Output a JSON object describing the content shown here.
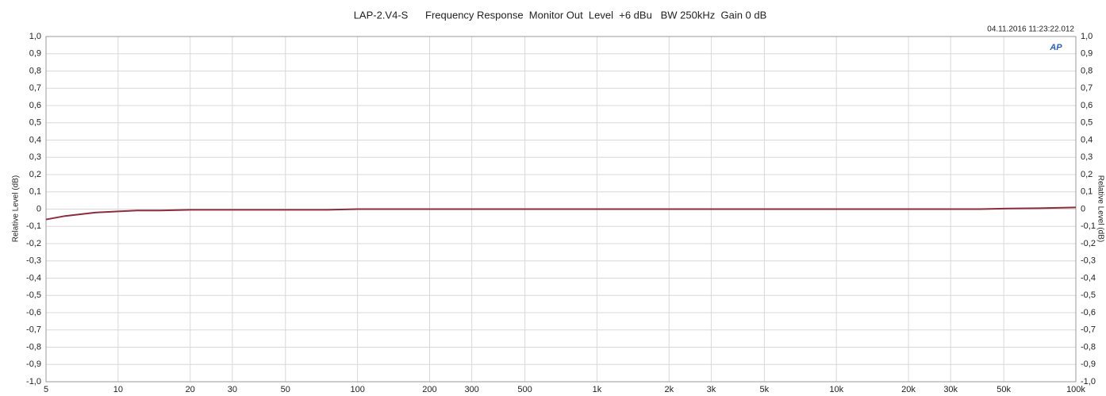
{
  "chart_data": {
    "type": "line",
    "title": "LAP-2.V4-S      Frequency Response  Monitor Out  Level  +6 dBu   BW 250kHz  Gain 0 dB",
    "timestamp": "04.11.2016 11:23:22.012",
    "logo": "AP",
    "ylabel": "Relative Level (dB)",
    "xscale": "log",
    "grid": true,
    "color": "#8b2d3c",
    "x": [
      5,
      6,
      8,
      10,
      12,
      15,
      20,
      30,
      50,
      75,
      100,
      1000,
      10000,
      40000,
      50000,
      70000,
      100000
    ],
    "values": [
      -0.06,
      -0.04,
      -0.02,
      -0.013,
      -0.008,
      -0.008,
      -0.004,
      -0.004,
      -0.004,
      -0.004,
      0,
      0,
      0,
      0,
      0.003,
      0.005,
      0.01
    ],
    "xlim": [
      5,
      100000
    ],
    "xticks": [
      5,
      10,
      20,
      30,
      50,
      100,
      200,
      300,
      500,
      {
        "value": 1000,
        "label": "1k"
      },
      {
        "value": 2000,
        "label": "2k"
      },
      {
        "value": 3000,
        "label": "3k"
      },
      {
        "value": 5000,
        "label": "5k"
      },
      {
        "value": 10000,
        "label": "10k"
      },
      {
        "value": 20000,
        "label": "20k"
      },
      {
        "value": 30000,
        "label": "30k"
      },
      {
        "value": 50000,
        "label": "50k"
      },
      {
        "value": 100000,
        "label": "100k"
      }
    ],
    "ylim": [
      -1,
      1
    ],
    "yticks": [
      {
        "value": 1,
        "label": "1,0"
      },
      {
        "value": 0.9,
        "label": "0,9"
      },
      {
        "value": 0.8,
        "label": "0,8"
      },
      {
        "value": 0.7,
        "label": "0,7"
      },
      {
        "value": 0.6,
        "label": "0,6"
      },
      {
        "value": 0.5,
        "label": "0,5"
      },
      {
        "value": 0.4,
        "label": "0,4"
      },
      {
        "value": 0.3,
        "label": "0,3"
      },
      {
        "value": 0.2,
        "label": "0,2"
      },
      {
        "value": 0.1,
        "label": "0,1"
      },
      0,
      {
        "value": -0.1,
        "label": "-0,1"
      },
      {
        "value": -0.2,
        "label": "-0,2"
      },
      {
        "value": -0.3,
        "label": "-0,3"
      },
      {
        "value": -0.4,
        "label": "-0,4"
      },
      {
        "value": -0.5,
        "label": "-0,5"
      },
      {
        "value": -0.6,
        "label": "-0,6"
      },
      {
        "value": -0.7,
        "label": "-0,7"
      },
      {
        "value": -0.8,
        "label": "-0,8"
      },
      {
        "value": -0.9,
        "label": "-0,9"
      },
      {
        "value": -1,
        "label": "-1,0"
      }
    ]
  }
}
